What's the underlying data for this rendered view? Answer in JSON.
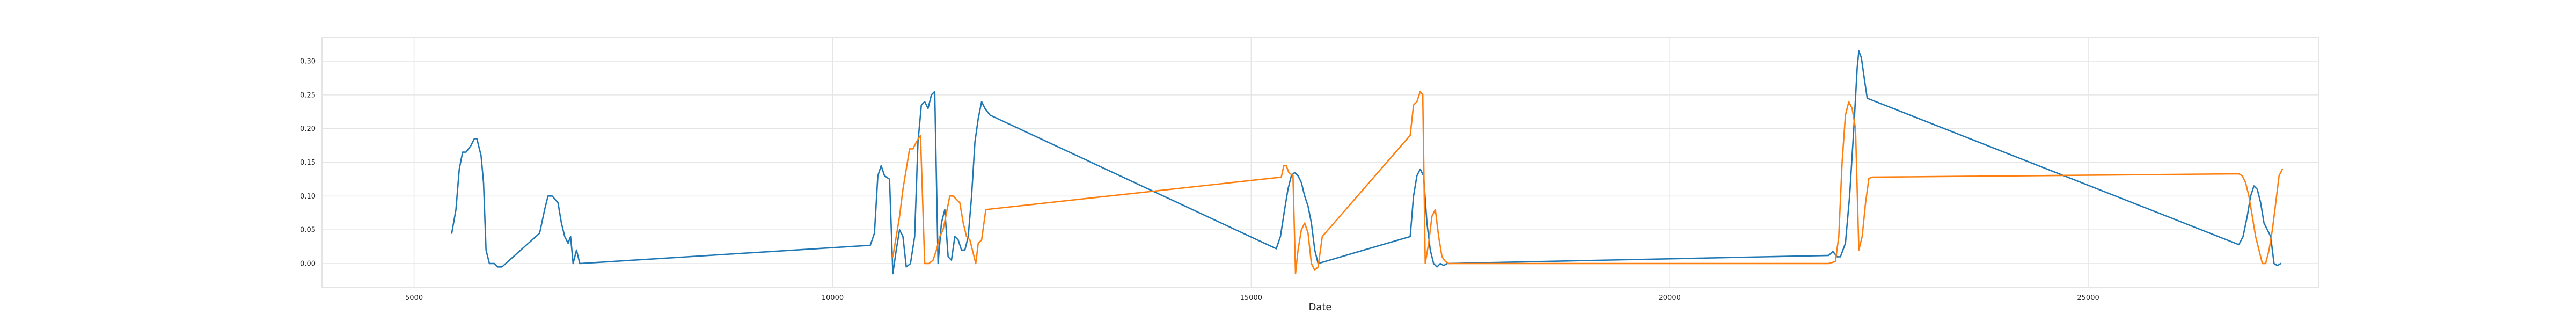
{
  "chart_data": {
    "type": "line",
    "xlabel": "Date",
    "ylabel": "",
    "xlim": [
      3900,
      27750
    ],
    "ylim": [
      -0.035,
      0.335
    ],
    "grid": true,
    "legend": "none",
    "xticks": [
      5000,
      10000,
      15000,
      20000,
      25000
    ],
    "xtick_labels": [
      "5000",
      "10000",
      "15000",
      "20000",
      "25000"
    ],
    "yticks": [
      0.0,
      0.05,
      0.1,
      0.15,
      0.2,
      0.25,
      0.3
    ],
    "ytick_labels": [
      "0.00",
      "0.05",
      "0.10",
      "0.15",
      "0.20",
      "0.25",
      "0.30"
    ],
    "colors": {
      "series_1": "#1f77b4",
      "series_2": "#ff7f0e",
      "grid": "#e5e5e5",
      "frame": "#dcdcdc"
    },
    "series": [
      {
        "color": "#1f77b4",
        "points": [
          [
            5450,
            0.045
          ],
          [
            5500,
            0.08
          ],
          [
            5540,
            0.14
          ],
          [
            5580,
            0.165
          ],
          [
            5620,
            0.165
          ],
          [
            5680,
            0.175
          ],
          [
            5720,
            0.185
          ],
          [
            5750,
            0.185
          ],
          [
            5800,
            0.16
          ],
          [
            5830,
            0.12
          ],
          [
            5860,
            0.02
          ],
          [
            5900,
            0.0
          ],
          [
            5960,
            0.0
          ],
          [
            6000,
            -0.005
          ],
          [
            6050,
            -0.005
          ],
          [
            6500,
            0.045
          ],
          [
            6560,
            0.08
          ],
          [
            6600,
            0.1
          ],
          [
            6650,
            0.1
          ],
          [
            6720,
            0.09
          ],
          [
            6760,
            0.06
          ],
          [
            6800,
            0.04
          ],
          [
            6840,
            0.03
          ],
          [
            6870,
            0.04
          ],
          [
            6900,
            0.0
          ],
          [
            6940,
            0.02
          ],
          [
            6980,
            0.0
          ],
          [
            10450,
            0.027
          ],
          [
            10500,
            0.045
          ],
          [
            10540,
            0.13
          ],
          [
            10580,
            0.145
          ],
          [
            10620,
            0.13
          ],
          [
            10680,
            0.125
          ],
          [
            10720,
            -0.015
          ],
          [
            10760,
            0.02
          ],
          [
            10800,
            0.05
          ],
          [
            10840,
            0.04
          ],
          [
            10880,
            -0.005
          ],
          [
            10930,
            0.0
          ],
          [
            10980,
            0.04
          ],
          [
            11020,
            0.18
          ],
          [
            11060,
            0.235
          ],
          [
            11100,
            0.24
          ],
          [
            11140,
            0.23
          ],
          [
            11180,
            0.25
          ],
          [
            11220,
            0.255
          ],
          [
            11260,
            0.0
          ],
          [
            11300,
            0.06
          ],
          [
            11340,
            0.08
          ],
          [
            11380,
            0.01
          ],
          [
            11420,
            0.005
          ],
          [
            11460,
            0.04
          ],
          [
            11500,
            0.035
          ],
          [
            11540,
            0.02
          ],
          [
            11580,
            0.02
          ],
          [
            11620,
            0.04
          ],
          [
            11660,
            0.1
          ],
          [
            11700,
            0.18
          ],
          [
            11740,
            0.215
          ],
          [
            11780,
            0.24
          ],
          [
            11820,
            0.23
          ],
          [
            11880,
            0.22
          ],
          [
            15300,
            0.022
          ],
          [
            15350,
            0.04
          ],
          [
            15400,
            0.08
          ],
          [
            15440,
            0.11
          ],
          [
            15480,
            0.13
          ],
          [
            15520,
            0.135
          ],
          [
            15560,
            0.13
          ],
          [
            15600,
            0.12
          ],
          [
            15640,
            0.1
          ],
          [
            15680,
            0.085
          ],
          [
            15720,
            0.06
          ],
          [
            15760,
            0.02
          ],
          [
            15800,
            0.0
          ],
          [
            16900,
            0.04
          ],
          [
            16940,
            0.1
          ],
          [
            16980,
            0.13
          ],
          [
            17020,
            0.14
          ],
          [
            17060,
            0.13
          ],
          [
            17100,
            0.06
          ],
          [
            17140,
            0.02
          ],
          [
            17180,
            0.0
          ],
          [
            17220,
            -0.005
          ],
          [
            17260,
            0.0
          ],
          [
            17300,
            -0.003
          ],
          [
            17340,
            0.0
          ],
          [
            21900,
            0.012
          ],
          [
            21950,
            0.018
          ],
          [
            22000,
            0.01
          ],
          [
            22040,
            0.01
          ],
          [
            22100,
            0.03
          ],
          [
            22150,
            0.1
          ],
          [
            22200,
            0.2
          ],
          [
            22240,
            0.29
          ],
          [
            22260,
            0.315
          ],
          [
            22290,
            0.305
          ],
          [
            22330,
            0.27
          ],
          [
            22360,
            0.245
          ],
          [
            26800,
            0.028
          ],
          [
            26850,
            0.04
          ],
          [
            26900,
            0.07
          ],
          [
            26940,
            0.1
          ],
          [
            26980,
            0.115
          ],
          [
            27020,
            0.11
          ],
          [
            27060,
            0.09
          ],
          [
            27100,
            0.06
          ],
          [
            27140,
            0.05
          ],
          [
            27180,
            0.04
          ],
          [
            27220,
            0.0
          ],
          [
            27260,
            -0.003
          ],
          [
            27300,
            0.0
          ]
        ]
      },
      {
        "color": "#ff7f0e",
        "points": [
          [
            10720,
            0.01
          ],
          [
            10760,
            0.04
          ],
          [
            10800,
            0.07
          ],
          [
            10840,
            0.11
          ],
          [
            10880,
            0.14
          ],
          [
            10920,
            0.17
          ],
          [
            10960,
            0.17
          ],
          [
            11000,
            0.18
          ],
          [
            11050,
            0.19
          ],
          [
            11100,
            0.0
          ],
          [
            11150,
            0.0
          ],
          [
            11200,
            0.005
          ],
          [
            11240,
            0.02
          ],
          [
            11280,
            0.04
          ],
          [
            11320,
            0.05
          ],
          [
            11360,
            0.075
          ],
          [
            11400,
            0.1
          ],
          [
            11440,
            0.1
          ],
          [
            11480,
            0.095
          ],
          [
            11520,
            0.09
          ],
          [
            11560,
            0.06
          ],
          [
            11600,
            0.04
          ],
          [
            11640,
            0.035
          ],
          [
            11680,
            0.015
          ],
          [
            11710,
            0.0
          ],
          [
            11740,
            0.03
          ],
          [
            11780,
            0.035
          ],
          [
            11830,
            0.08
          ],
          [
            15360,
            0.128
          ],
          [
            15390,
            0.145
          ],
          [
            15420,
            0.145
          ],
          [
            15450,
            0.135
          ],
          [
            15500,
            0.13
          ],
          [
            15530,
            -0.015
          ],
          [
            15560,
            0.02
          ],
          [
            15600,
            0.05
          ],
          [
            15640,
            0.06
          ],
          [
            15680,
            0.045
          ],
          [
            15720,
            0.0
          ],
          [
            15760,
            -0.01
          ],
          [
            15800,
            -0.005
          ],
          [
            15850,
            0.04
          ],
          [
            16900,
            0.19
          ],
          [
            16940,
            0.235
          ],
          [
            16980,
            0.24
          ],
          [
            17020,
            0.255
          ],
          [
            17050,
            0.25
          ],
          [
            17080,
            0.0
          ],
          [
            17120,
            0.03
          ],
          [
            17160,
            0.07
          ],
          [
            17200,
            0.08
          ],
          [
            17240,
            0.04
          ],
          [
            17280,
            0.01
          ],
          [
            17320,
            0.003
          ],
          [
            17360,
            0.0
          ],
          [
            21900,
            0.0
          ],
          [
            21980,
            0.003
          ],
          [
            22020,
            0.04
          ],
          [
            22060,
            0.15
          ],
          [
            22100,
            0.22
          ],
          [
            22140,
            0.24
          ],
          [
            22180,
            0.23
          ],
          [
            22220,
            0.2
          ],
          [
            22260,
            0.02
          ],
          [
            22300,
            0.04
          ],
          [
            22340,
            0.09
          ],
          [
            22380,
            0.126
          ],
          [
            22420,
            0.128
          ],
          [
            26800,
            0.133
          ],
          [
            26840,
            0.13
          ],
          [
            26880,
            0.12
          ],
          [
            26920,
            0.1
          ],
          [
            26960,
            0.07
          ],
          [
            27000,
            0.04
          ],
          [
            27040,
            0.02
          ],
          [
            27080,
            0.0
          ],
          [
            27120,
            0.0
          ],
          [
            27160,
            0.02
          ],
          [
            27200,
            0.05
          ],
          [
            27240,
            0.09
          ],
          [
            27280,
            0.13
          ],
          [
            27320,
            0.14
          ]
        ]
      }
    ]
  }
}
